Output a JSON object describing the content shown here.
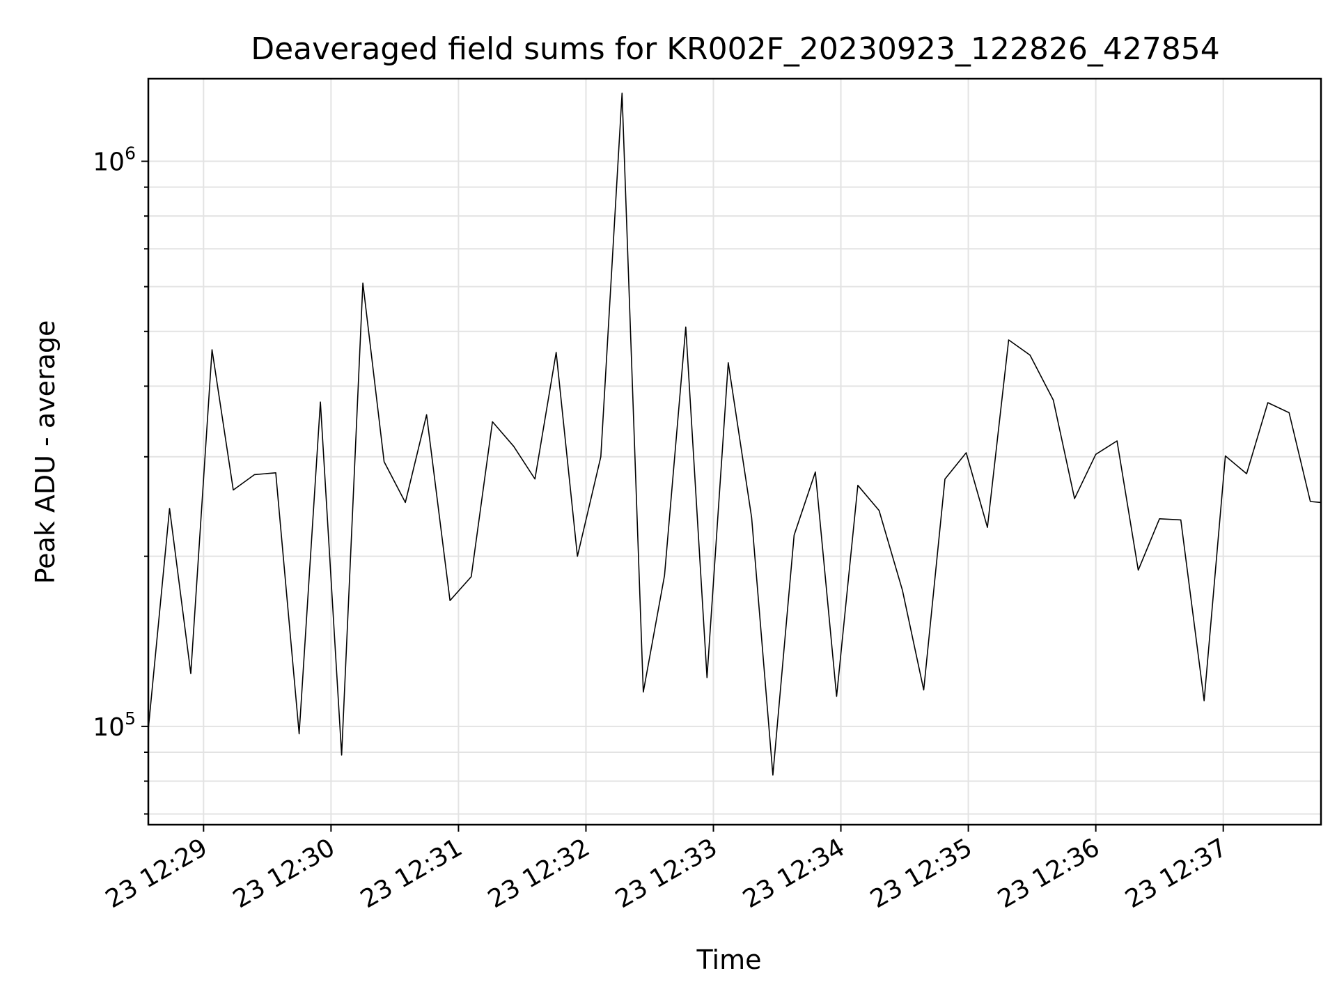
{
  "chart_data": {
    "type": "line",
    "title": "Deaveraged field sums for KR002F_20230923_122826_427854",
    "xlabel": "Time",
    "ylabel": "Peak ADU - average",
    "yscale": "log",
    "grid": true,
    "line_color": "#000000",
    "x_start": "2023-09-23 12:28:34",
    "x_end": "2023-09-23 12:37:46",
    "ylim": [
      67000,
      1400000
    ],
    "x_ticks": [
      "23 12:29",
      "23 12:30",
      "23 12:31",
      "23 12:32",
      "23 12:33",
      "23 12:34",
      "23 12:35",
      "23 12:36",
      "23 12:37"
    ],
    "y_ticks": [
      {
        "value": 100000,
        "base": "10",
        "exp": "5"
      },
      {
        "value": 1000000,
        "base": "10",
        "exp": "6"
      }
    ],
    "series": [
      {
        "name": "",
        "x": [
          "2023-09-23 12:28:34",
          "2023-09-23 12:28:44",
          "2023-09-23 12:28:54",
          "2023-09-23 12:29:04",
          "2023-09-23 12:29:14",
          "2023-09-23 12:29:24",
          "2023-09-23 12:29:34",
          "2023-09-23 12:29:45",
          "2023-09-23 12:29:55",
          "2023-09-23 12:30:05",
          "2023-09-23 12:30:15",
          "2023-09-23 12:30:25",
          "2023-09-23 12:30:35",
          "2023-09-23 12:30:45",
          "2023-09-23 12:30:56",
          "2023-09-23 12:31:06",
          "2023-09-23 12:31:16",
          "2023-09-23 12:31:26",
          "2023-09-23 12:31:36",
          "2023-09-23 12:31:46",
          "2023-09-23 12:31:56",
          "2023-09-23 12:32:07",
          "2023-09-23 12:32:17",
          "2023-09-23 12:32:27",
          "2023-09-23 12:32:37",
          "2023-09-23 12:32:47",
          "2023-09-23 12:32:57",
          "2023-09-23 12:33:07",
          "2023-09-23 12:33:18",
          "2023-09-23 12:33:28",
          "2023-09-23 12:33:38",
          "2023-09-23 12:33:48",
          "2023-09-23 12:33:58",
          "2023-09-23 12:34:08",
          "2023-09-23 12:34:18",
          "2023-09-23 12:34:29",
          "2023-09-23 12:34:39",
          "2023-09-23 12:34:49",
          "2023-09-23 12:34:59",
          "2023-09-23 12:35:09",
          "2023-09-23 12:35:19",
          "2023-09-23 12:35:29",
          "2023-09-23 12:35:40",
          "2023-09-23 12:35:50",
          "2023-09-23 12:36:00",
          "2023-09-23 12:36:10",
          "2023-09-23 12:36:20",
          "2023-09-23 12:36:30",
          "2023-09-23 12:36:40",
          "2023-09-23 12:36:51",
          "2023-09-23 12:37:01",
          "2023-09-23 12:37:11",
          "2023-09-23 12:37:21",
          "2023-09-23 12:37:31",
          "2023-09-23 12:37:41",
          "2023-09-23 12:37:46"
        ],
        "y": [
          99000,
          243000,
          124000,
          464000,
          262000,
          279000,
          281000,
          97000,
          375000,
          89000,
          609000,
          294000,
          249000,
          356000,
          167000,
          184000,
          346000,
          313000,
          274000,
          459000,
          200000,
          300000,
          1320000,
          115000,
          185000,
          509000,
          122000,
          440000,
          234000,
          82000,
          218000,
          282000,
          113000,
          267000,
          241000,
          174000,
          116000,
          274000,
          305000,
          225000,
          483000,
          454000,
          378000,
          253000,
          303000,
          320000,
          189000,
          233000,
          232000,
          111000,
          301000,
          280000,
          374000,
          359000,
          250000,
          249000
        ]
      }
    ]
  }
}
